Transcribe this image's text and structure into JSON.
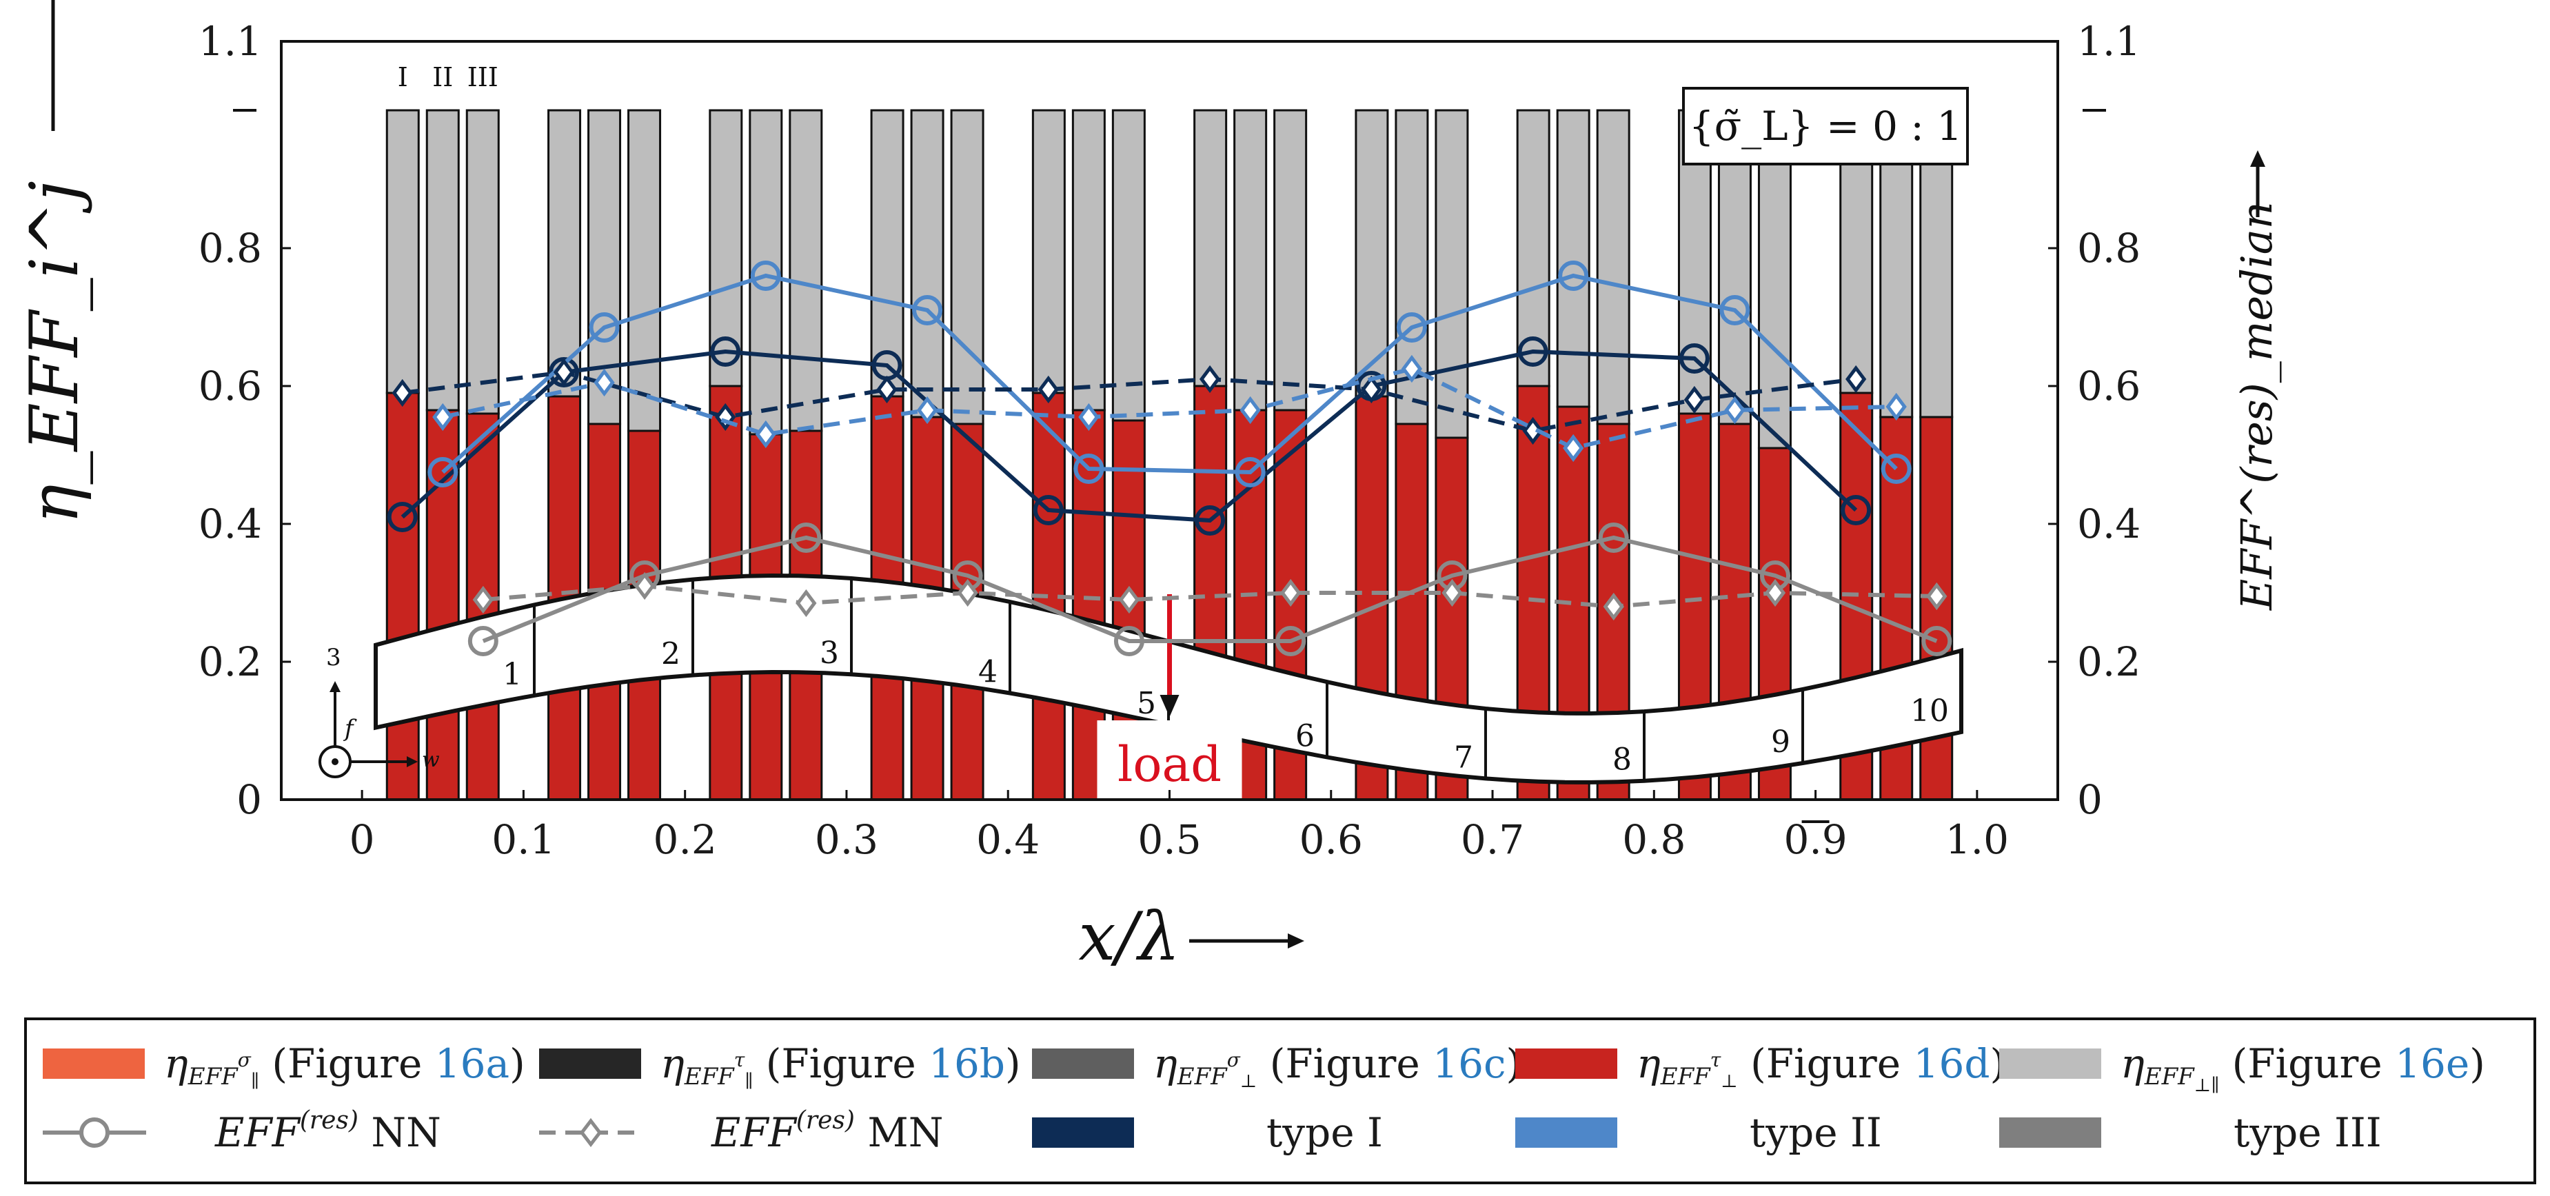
{
  "chart_data": {
    "type": "bar",
    "title": "",
    "xlabel": "x/λ",
    "ylabel_left": "η_EFF_i^j",
    "ylabel_right": "EFF^(res)_median",
    "xlim": [
      -0.05,
      1.05
    ],
    "ylim": [
      0,
      1.1
    ],
    "x_ticks": [
      "0",
      "0.1",
      "0.2",
      "0.3",
      "0.4",
      "0.5",
      "0.6",
      "0.7",
      "0.8",
      "0.9",
      "1.0"
    ],
    "x_tick_values": [
      0,
      0.1,
      0.2,
      0.3,
      0.4,
      0.5,
      0.6,
      0.7,
      0.8,
      0.9,
      1.0
    ],
    "y_ticks": [
      "0",
      "0.2",
      "0.4",
      "0.6",
      "0.8",
      "1.1"
    ],
    "y_tick_values": [
      0,
      0.2,
      0.4,
      0.6,
      0.8,
      1.1
    ],
    "extra_tick_values": [
      1.0
    ],
    "annotation_box": "{σ̃_L} = 0 : 1",
    "type_labels": [
      "I",
      "II",
      "III"
    ],
    "load_label": "load",
    "load_x": 0.5,
    "segment_labels": [
      "1",
      "2",
      "3",
      "4",
      "5",
      "6",
      "7",
      "8",
      "9",
      "10"
    ],
    "axis_symbols": {
      "vertical": "3",
      "f": "f",
      "w": "w"
    },
    "bar_groups": [
      {
        "x": 0.05,
        "types": [
          {
            "type": "I",
            "perp_tau": 0.59,
            "total": 1.0
          },
          {
            "type": "II",
            "perp_tau": 0.565,
            "total": 1.0
          },
          {
            "type": "III",
            "perp_tau": 0.56,
            "total": 1.0
          }
        ]
      },
      {
        "x": 0.15,
        "types": [
          {
            "type": "I",
            "perp_tau": 0.585,
            "total": 1.0
          },
          {
            "type": "II",
            "perp_tau": 0.545,
            "total": 1.0
          },
          {
            "type": "III",
            "perp_tau": 0.535,
            "total": 1.0
          }
        ]
      },
      {
        "x": 0.25,
        "types": [
          {
            "type": "I",
            "perp_tau": 0.6,
            "total": 1.0
          },
          {
            "type": "II",
            "perp_tau": 0.53,
            "total": 1.0
          },
          {
            "type": "III",
            "perp_tau": 0.535,
            "total": 1.0
          }
        ]
      },
      {
        "x": 0.35,
        "types": [
          {
            "type": "I",
            "perp_tau": 0.585,
            "total": 1.0
          },
          {
            "type": "II",
            "perp_tau": 0.555,
            "total": 1.0
          },
          {
            "type": "III",
            "perp_tau": 0.545,
            "total": 1.0
          }
        ]
      },
      {
        "x": 0.45,
        "types": [
          {
            "type": "I",
            "perp_tau": 0.59,
            "total": 1.0
          },
          {
            "type": "II",
            "perp_tau": 0.565,
            "total": 1.0
          },
          {
            "type": "III",
            "perp_tau": 0.55,
            "total": 1.0
          }
        ]
      },
      {
        "x": 0.55,
        "types": [
          {
            "type": "I",
            "perp_tau": 0.6,
            "total": 1.0
          },
          {
            "type": "II",
            "perp_tau": 0.565,
            "total": 1.0
          },
          {
            "type": "III",
            "perp_tau": 0.565,
            "total": 1.0
          }
        ]
      },
      {
        "x": 0.65,
        "types": [
          {
            "type": "I",
            "perp_tau": 0.585,
            "total": 1.0
          },
          {
            "type": "II",
            "perp_tau": 0.545,
            "total": 1.0
          },
          {
            "type": "III",
            "perp_tau": 0.525,
            "total": 1.0
          }
        ]
      },
      {
        "x": 0.75,
        "types": [
          {
            "type": "I",
            "perp_tau": 0.6,
            "total": 1.0
          },
          {
            "type": "II",
            "perp_tau": 0.57,
            "total": 1.0
          },
          {
            "type": "III",
            "perp_tau": 0.545,
            "total": 1.0
          }
        ]
      },
      {
        "x": 0.85,
        "types": [
          {
            "type": "I",
            "perp_tau": 0.56,
            "total": 1.0
          },
          {
            "type": "II",
            "perp_tau": 0.545,
            "total": 1.0
          },
          {
            "type": "III",
            "perp_tau": 0.51,
            "total": 1.0
          }
        ]
      },
      {
        "x": 0.95,
        "types": [
          {
            "type": "I",
            "perp_tau": 0.59,
            "total": 1.0
          },
          {
            "type": "II",
            "perp_tau": 0.555,
            "total": 1.0
          },
          {
            "type": "III",
            "perp_tau": 0.555,
            "total": 1.0
          }
        ]
      }
    ],
    "series": [
      {
        "name": "type I NN",
        "style": "solid-circle",
        "color": "#0d2c55",
        "x": [
          0.025,
          0.125,
          0.225,
          0.325,
          0.425,
          0.525,
          0.625,
          0.725,
          0.825,
          0.925
        ],
        "values": [
          0.41,
          0.62,
          0.65,
          0.63,
          0.42,
          0.405,
          0.6,
          0.65,
          0.64,
          0.42
        ]
      },
      {
        "name": "type II NN",
        "style": "solid-circle",
        "color": "#4e87c9",
        "x": [
          0.05,
          0.15,
          0.25,
          0.35,
          0.45,
          0.55,
          0.65,
          0.75,
          0.85,
          0.95
        ],
        "values": [
          0.475,
          0.685,
          0.76,
          0.71,
          0.48,
          0.475,
          0.685,
          0.76,
          0.71,
          0.48
        ]
      },
      {
        "name": "type III NN",
        "style": "solid-circle",
        "color": "#8a8a8a",
        "x": [
          0.075,
          0.175,
          0.275,
          0.375,
          0.475,
          0.575,
          0.675,
          0.775,
          0.875,
          0.975
        ],
        "values": [
          0.23,
          0.325,
          0.38,
          0.325,
          0.23,
          0.23,
          0.325,
          0.38,
          0.325,
          0.23
        ]
      },
      {
        "name": "type I MN",
        "style": "dashed-diamond",
        "color": "#0d2c55",
        "x": [
          0.025,
          0.125,
          0.225,
          0.325,
          0.425,
          0.525,
          0.625,
          0.725,
          0.825,
          0.925
        ],
        "values": [
          0.59,
          0.62,
          0.555,
          0.595,
          0.595,
          0.61,
          0.595,
          0.535,
          0.58,
          0.61
        ]
      },
      {
        "name": "type II MN",
        "style": "dashed-diamond",
        "color": "#4e87c9",
        "x": [
          0.05,
          0.15,
          0.25,
          0.35,
          0.45,
          0.55,
          0.65,
          0.75,
          0.85,
          0.95
        ],
        "values": [
          0.555,
          0.605,
          0.53,
          0.565,
          0.555,
          0.565,
          0.625,
          0.51,
          0.565,
          0.57
        ]
      },
      {
        "name": "type III MN",
        "style": "dashed-diamond",
        "color": "#8a8a8a",
        "x": [
          0.075,
          0.175,
          0.275,
          0.375,
          0.475,
          0.575,
          0.675,
          0.775,
          0.875,
          0.975
        ],
        "values": [
          0.29,
          0.31,
          0.285,
          0.3,
          0.29,
          0.3,
          0.3,
          0.28,
          0.3,
          0.295
        ]
      }
    ],
    "colors": {
      "par_sigma": "#ee6440",
      "par_tau": "#262626",
      "perp_sigma": "#5f5f5f",
      "perp_tau": "#c8241f",
      "perp_par": "#bdbdbd",
      "type_I": "#0d2c55",
      "type_II": "#4e87c9",
      "type_III": "#7f7f7f",
      "load": "#d9101e",
      "figure_ref": "#2a7bbf"
    },
    "legend": [
      {
        "symbol": "η",
        "sub": "EFF",
        "subsub": "∥",
        "sup": "σ",
        "paren_open": " (Figure ",
        "ref": "16a",
        "paren_close": ")",
        "swatch": "par_sigma"
      },
      {
        "symbol": "η",
        "sub": "EFF",
        "subsub": "∥",
        "sup": "τ",
        "paren_open": " (Figure ",
        "ref": "16b",
        "paren_close": ")",
        "swatch": "par_tau"
      },
      {
        "symbol": "η",
        "sub": "EFF",
        "subsub": "⊥",
        "sup": "σ",
        "paren_open": " (Figure ",
        "ref": "16c",
        "paren_close": ")",
        "swatch": "perp_sigma"
      },
      {
        "symbol": "η",
        "sub": "EFF",
        "subsub": "⊥",
        "sup": "τ",
        "paren_open": " (Figure ",
        "ref": "16d",
        "paren_close": ")",
        "swatch": "perp_tau"
      },
      {
        "symbol": "η",
        "sub": "EFF",
        "subsub": "⊥∥",
        "sup": "",
        "paren_open": " (Figure ",
        "ref": "16e",
        "paren_close": ")",
        "swatch": "perp_par"
      }
    ],
    "legend_row2": [
      {
        "label": "EFF",
        "sup": "(res)",
        "suffix": " NN",
        "kind": "circle"
      },
      {
        "label": "EFF",
        "sup": "(res)",
        "suffix": " MN",
        "kind": "diamond"
      },
      {
        "label": "type I",
        "kind": "swatch",
        "color": "type_I"
      },
      {
        "label": "type II",
        "kind": "swatch",
        "color": "type_II"
      },
      {
        "label": "type III",
        "kind": "swatch",
        "color": "type_III"
      }
    ]
  }
}
